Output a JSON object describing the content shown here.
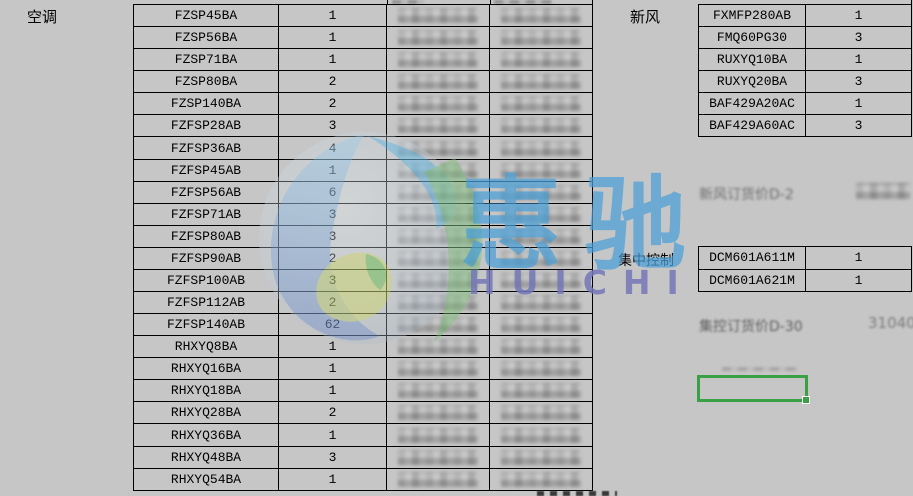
{
  "page": {
    "background": "#c6c6c6",
    "border_color": "#000000"
  },
  "aircon": {
    "label": "空调",
    "censored_price_columns": 2,
    "rows": [
      {
        "model": "FZSP45BA",
        "qty": "1"
      },
      {
        "model": "FZSP56BA",
        "qty": "1"
      },
      {
        "model": "FZSP71BA",
        "qty": "1"
      },
      {
        "model": "FZSP80BA",
        "qty": "2"
      },
      {
        "model": "FZSP140BA",
        "qty": "2"
      },
      {
        "model": "FZFSP28AB",
        "qty": "3"
      },
      {
        "model": "FZFSP36AB",
        "qty": "4"
      },
      {
        "model": "FZFSP45AB",
        "qty": "1"
      },
      {
        "model": "FZFSP56AB",
        "qty": "6"
      },
      {
        "model": "FZFSP71AB",
        "qty": "3"
      },
      {
        "model": "FZFSP80AB",
        "qty": "3"
      },
      {
        "model": "FZFSP90AB",
        "qty": "2"
      },
      {
        "model": "FZFSP100AB",
        "qty": "3"
      },
      {
        "model": "FZFSP112AB",
        "qty": "2"
      },
      {
        "model": "FZFSP140AB",
        "qty": "62"
      },
      {
        "model": "RHXYQ8BA",
        "qty": "1"
      },
      {
        "model": "RHXYQ16BA",
        "qty": "1"
      },
      {
        "model": "RHXYQ18BA",
        "qty": "1"
      },
      {
        "model": "RHXYQ28BA",
        "qty": "2"
      },
      {
        "model": "RHXYQ36BA",
        "qty": "1"
      },
      {
        "model": "RHXYQ48BA",
        "qty": "3"
      },
      {
        "model": "RHXYQ54BA",
        "qty": "1"
      }
    ]
  },
  "fresh_air": {
    "label": "新风",
    "rows": [
      {
        "model": "FXMFP280AB",
        "qty": "1"
      },
      {
        "model": "FMQ60PG30",
        "qty": "3"
      },
      {
        "model": "RUXYQ10BA",
        "qty": "1"
      },
      {
        "model": "RUXYQ20BA",
        "qty": "3"
      },
      {
        "model": "BAF429A20AC",
        "qty": "1"
      },
      {
        "model": "BAF429A60AC",
        "qty": "3"
      }
    ],
    "price_note": "新风订货价D-2"
  },
  "central_control": {
    "label": "集中控制",
    "rows": [
      {
        "model": "DCM601A611M",
        "qty": "1"
      },
      {
        "model": "DCM601A621M",
        "qty": "1"
      }
    ],
    "price_note": "集控订货价D-30",
    "price_value": "31040"
  },
  "watermark": {
    "cn_text": "惠驰",
    "en_text": "HUICHI",
    "cn_color": "#4aa0d8",
    "en_color": "#7577b9",
    "sphere_blue": "#8cc6e8",
    "sphere_green": "#76bf72",
    "sphere_yellow": "#cdd963"
  },
  "selection": {
    "color": "#3aa045"
  }
}
